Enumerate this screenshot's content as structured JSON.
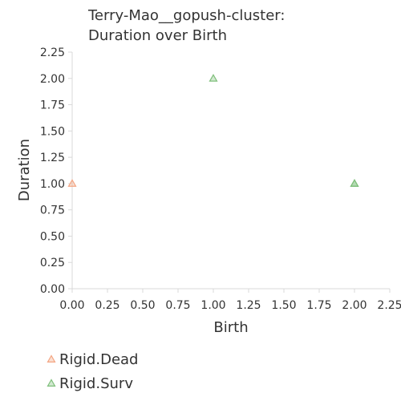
{
  "chart_data": {
    "type": "scatter",
    "title": [
      "Terry-Mao__gopush-cluster:",
      "Duration over Birth"
    ],
    "xlabel": "Birth",
    "ylabel": "Duration",
    "xlim": [
      0,
      2.25
    ],
    "ylim": [
      0,
      2.25
    ],
    "xticks": [
      "0.00",
      "0.25",
      "0.50",
      "0.75",
      "1.00",
      "1.25",
      "1.50",
      "1.75",
      "2.00",
      "2.25"
    ],
    "yticks": [
      "0.00",
      "0.25",
      "0.50",
      "0.75",
      "1.00",
      "1.25",
      "1.50",
      "1.75",
      "2.00",
      "2.25"
    ],
    "grid": false,
    "legend_position": "bottom-left",
    "series": [
      {
        "name": "Rigid.Dead",
        "color": "#f4a582",
        "marker": "triangle",
        "points": [
          {
            "x": 0.0,
            "y": 1.0
          }
        ]
      },
      {
        "name": "Rigid.Surv",
        "color": "#7fbf7b",
        "marker": "triangle",
        "points": [
          {
            "x": 1.0,
            "y": 2.0
          },
          {
            "x": 2.0,
            "y": 1.0
          },
          {
            "x": 2.0,
            "y": 1.0
          }
        ]
      }
    ]
  }
}
